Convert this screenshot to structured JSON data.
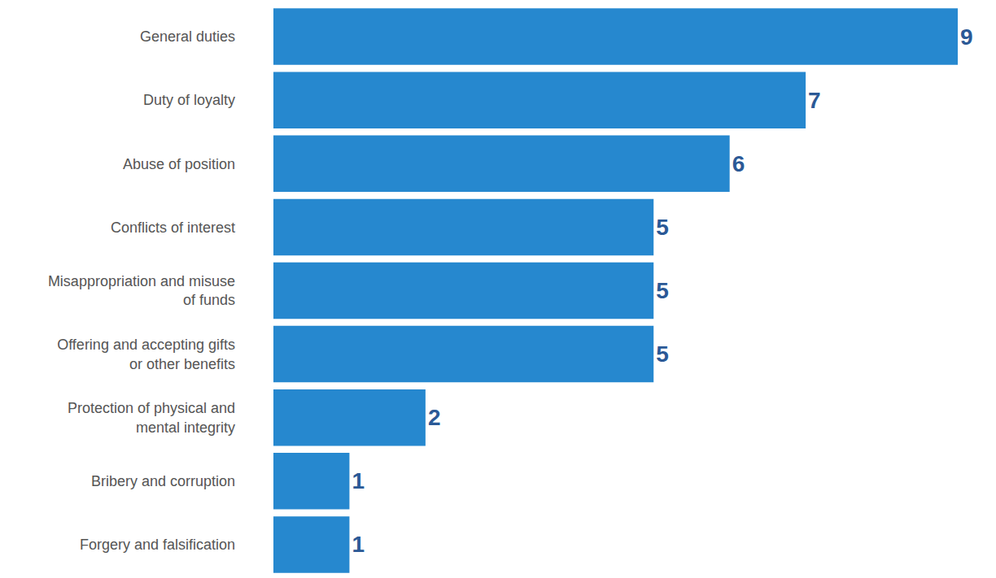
{
  "chart_data": {
    "type": "bar",
    "orientation": "horizontal",
    "categories": [
      "General duties",
      "Duty of loyalty",
      "Abuse of position",
      "Conflicts of interest",
      "Misappropriation and misuse of funds",
      "Offering and accepting gifts or other benefits",
      "Protection of physical and mental integrity",
      "Bribery and corruption",
      "Forgery and falsification"
    ],
    "values": [
      9,
      7,
      6,
      5,
      5,
      5,
      2,
      1,
      1
    ],
    "color": "#2688cf",
    "xlim": [
      0,
      9
    ],
    "grid": false,
    "data_labels": true,
    "tick_labels": "y"
  }
}
